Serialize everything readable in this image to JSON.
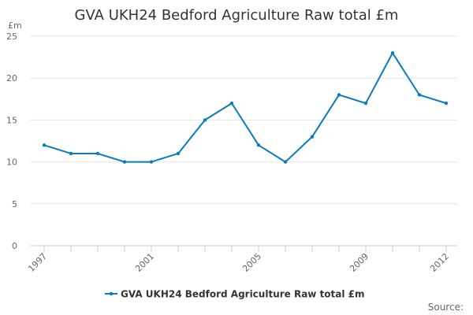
{
  "colors": {
    "series": "#0a7bbd",
    "grid": "#e6e6e6",
    "axis": "#c0d0e0",
    "text": "#333333",
    "muted": "#666666"
  },
  "chart_data": {
    "type": "line",
    "title": "GVA UKH24 Bedford Agriculture Raw total £m",
    "ylabel": "£m",
    "xlabel": "",
    "x": [
      1997,
      1998,
      1999,
      2000,
      2001,
      2002,
      2003,
      2004,
      2005,
      2006,
      2007,
      2008,
      2009,
      2010,
      2011,
      2012
    ],
    "x_tick_labels": [
      "1997",
      "2001",
      "2005",
      "2009",
      "2012"
    ],
    "x_tick_values": [
      1997,
      2001,
      2005,
      2009,
      2012
    ],
    "y_tick_labels": [
      "0",
      "5",
      "10",
      "15",
      "20",
      "25"
    ],
    "y_tick_values": [
      0,
      5,
      10,
      15,
      20,
      25
    ],
    "ylim": [
      0,
      25
    ],
    "xlim": [
      1997,
      2012
    ],
    "grid": true,
    "series": [
      {
        "name": "GVA UKH24 Bedford Agriculture Raw total £m",
        "values": [
          12,
          11,
          11,
          10,
          10,
          11,
          15,
          17,
          12,
          10,
          13,
          18,
          17,
          23,
          18,
          17
        ]
      }
    ],
    "legend": {
      "placement": "bottom-center",
      "label": "GVA UKH24 Bedford Agriculture Raw total £m"
    },
    "source_label": "Source:"
  }
}
